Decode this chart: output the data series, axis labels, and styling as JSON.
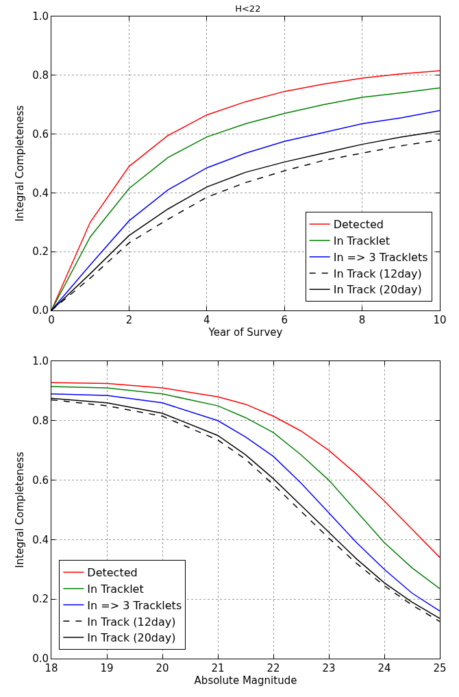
{
  "chart_data": [
    {
      "type": "line",
      "title": "H<22",
      "xlabel": "Year of Survey",
      "ylabel": "Integral Completeness",
      "x": [
        0,
        1,
        2,
        3,
        4,
        5,
        6,
        7,
        8,
        9,
        10
      ],
      "series": [
        {
          "name": "Detected",
          "color": "#ff0000",
          "values": [
            0,
            0.3,
            0.49,
            0.595,
            0.665,
            0.71,
            0.745,
            0.77,
            0.79,
            0.805,
            0.815
          ]
        },
        {
          "name": "In Tracklet",
          "color": "#008000",
          "values": [
            0,
            0.25,
            0.415,
            0.52,
            0.59,
            0.635,
            0.67,
            0.7,
            0.725,
            0.74,
            0.757
          ]
        },
        {
          "name": "In => 3 Tracklets",
          "color": "#0000ff",
          "values": [
            0,
            0.155,
            0.305,
            0.41,
            0.485,
            0.535,
            0.575,
            0.605,
            0.635,
            0.655,
            0.68
          ]
        },
        {
          "name": "In Track (12day)",
          "color": "#000000",
          "line_style": "dashed",
          "values": [
            0,
            0.11,
            0.23,
            0.31,
            0.385,
            0.435,
            0.475,
            0.51,
            0.535,
            0.56,
            0.58
          ]
        },
        {
          "name": "In Track (20day)",
          "color": "#000000",
          "line_style": "solid",
          "values": [
            0,
            0.125,
            0.255,
            0.345,
            0.42,
            0.47,
            0.505,
            0.535,
            0.565,
            0.59,
            0.61
          ]
        }
      ],
      "xlim": [
        0,
        10
      ],
      "xticks": [
        0,
        2,
        4,
        6,
        8,
        10
      ],
      "ylim": [
        0,
        1
      ],
      "yticks": [
        {
          "value": 0,
          "label": "0.0"
        },
        {
          "value": 0.2,
          "label": "0.2"
        },
        {
          "value": 0.4,
          "label": "0.4"
        },
        {
          "value": 0.6,
          "label": "0.6"
        },
        {
          "value": 0.8,
          "label": "0.8"
        },
        {
          "value": 1,
          "label": "1.0"
        }
      ],
      "grid": true,
      "legend": "bottom right",
      "line_style": "solid",
      "marker": "none"
    },
    {
      "type": "line",
      "xlabel": "Absolute Magnitude",
      "ylabel": "Integral Completeness",
      "x": [
        18,
        19,
        20,
        21,
        21.5,
        22,
        22.5,
        23,
        23.5,
        24,
        24.5,
        25
      ],
      "series": [
        {
          "name": "Detected",
          "color": "#ff0000",
          "values": [
            0.928,
            0.925,
            0.91,
            0.88,
            0.855,
            0.815,
            0.765,
            0.7,
            0.62,
            0.53,
            0.435,
            0.34
          ]
        },
        {
          "name": "In Tracklet",
          "color": "#008000",
          "values": [
            0.915,
            0.91,
            0.89,
            0.85,
            0.81,
            0.76,
            0.685,
            0.6,
            0.495,
            0.39,
            0.305,
            0.235
          ]
        },
        {
          "name": "In => 3 Tracklets",
          "color": "#0000ff",
          "values": [
            0.89,
            0.885,
            0.86,
            0.8,
            0.745,
            0.68,
            0.59,
            0.49,
            0.39,
            0.3,
            0.22,
            0.16
          ]
        },
        {
          "name": "In Track (12day)",
          "color": "#000000",
          "line_style": "dashed",
          "values": [
            0.87,
            0.85,
            0.815,
            0.735,
            0.67,
            0.585,
            0.495,
            0.405,
            0.32,
            0.245,
            0.18,
            0.125
          ]
        },
        {
          "name": "In Track (20day)",
          "color": "#000000",
          "line_style": "solid",
          "values": [
            0.875,
            0.86,
            0.825,
            0.75,
            0.685,
            0.605,
            0.515,
            0.425,
            0.335,
            0.255,
            0.19,
            0.135
          ]
        }
      ],
      "xlim": [
        18,
        25
      ],
      "xticks": [
        18,
        19,
        20,
        21,
        22,
        23,
        24,
        25
      ],
      "ylim": [
        0,
        1
      ],
      "yticks": [
        {
          "value": 0,
          "label": "0.0"
        },
        {
          "value": 0.2,
          "label": "0.2"
        },
        {
          "value": 0.4,
          "label": "0.4"
        },
        {
          "value": 0.6,
          "label": "0.6"
        },
        {
          "value": 0.8,
          "label": "0.8"
        },
        {
          "value": 1,
          "label": "1.0"
        }
      ],
      "grid": true,
      "legend": "bottom left",
      "line_style": "solid",
      "marker": "none"
    }
  ]
}
